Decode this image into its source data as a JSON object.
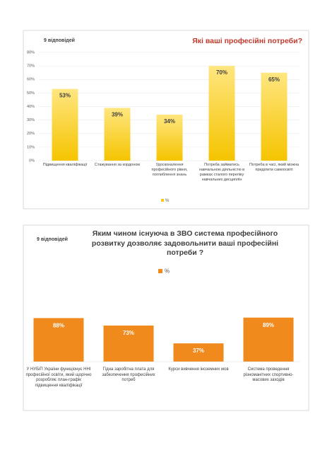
{
  "chart_data": [
    {
      "type": "bar",
      "title": "Які ваші професійні потреби?",
      "annotation": "9 відповідей",
      "categories": [
        "Підвищення кваліфікації",
        "Стажування за кордоном",
        "Удосконалення професійного рівня, поглиблення знань",
        "Потреба займатись навчальною діяльністю в рамках сталого переліку навчальних дисциплін",
        "Потреба в часі, який можна приділити самоосвіті"
      ],
      "series": [
        {
          "name": "%",
          "color": "#f7c913",
          "values": [
            53,
            39,
            34,
            70,
            65
          ],
          "value_labels": [
            "53%",
            "39%",
            "34%",
            "70%",
            "65%"
          ]
        }
      ],
      "ylim": [
        0,
        80
      ],
      "yticks": [
        {
          "value": 0,
          "label": "0%"
        },
        {
          "value": 10,
          "label": "10%"
        },
        {
          "value": 20,
          "label": "20%"
        },
        {
          "value": 30,
          "label": "30%"
        },
        {
          "value": 40,
          "label": "40%"
        },
        {
          "value": 50,
          "label": "50%"
        },
        {
          "value": 60,
          "label": "60%"
        },
        {
          "value": 70,
          "label": "70%"
        },
        {
          "value": 80,
          "label": "80%"
        }
      ],
      "grid": true,
      "legend": "bottom"
    },
    {
      "type": "bar",
      "title": "Яким чином існуюча в ЗВО система професійного розвитку дозволяє задовольнити ваші професійні потреби ?",
      "annotation": "9 відповідей",
      "categories": [
        "У НУБіП України функціонує ННІ професійної освіти, який щорічно розробляє план-графік підвищення кваліфікації",
        "Гідна заробітна плата для забезпечення професійних потреб",
        "Курси вивчення іноземних мов",
        "Система проведення різноманітних спортивно-масових заходів"
      ],
      "series": [
        {
          "name": "%",
          "color": "#f08a1c",
          "values": [
            88,
            73,
            37,
            89
          ],
          "value_labels": [
            "88%",
            "73%",
            "37%",
            "89%"
          ]
        }
      ],
      "legend": "top"
    }
  ]
}
